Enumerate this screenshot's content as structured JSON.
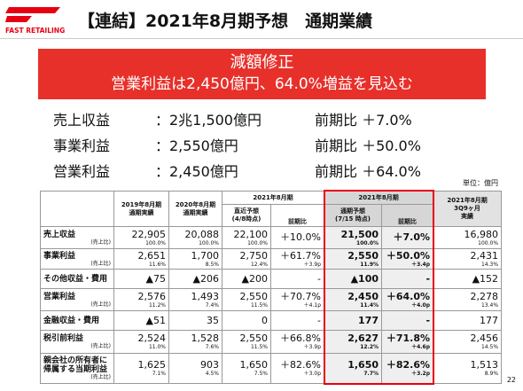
{
  "logo": {
    "text": "FAST RETAILING"
  },
  "header": {
    "title": "【連結】2021年8月期予想　通期業績"
  },
  "banner": {
    "line1": "減額修正",
    "line2": "営業利益は2,450億円、64.0%増益を見込む"
  },
  "summary": [
    {
      "label": "売上収益",
      "value": "：2兆1,500億円",
      "compare": "前期比 ＋7.0%"
    },
    {
      "label": "事業利益",
      "value": "：2,550億円",
      "compare": "前期比 ＋50.0%"
    },
    {
      "label": "営業利益",
      "value": "：2,450億円",
      "compare": "前期比 ＋64.0%"
    }
  ],
  "table": {
    "unit": "単位：億円",
    "headers": {
      "c1": [
        "2019年8月期",
        "通期実績"
      ],
      "c2": [
        "2020年8月期",
        "通期実績"
      ],
      "g1": "2021年8月期",
      "g1a": [
        "直近予想",
        "(4/8時点)"
      ],
      "g1b": "前期比",
      "g2": "2021年8月期",
      "g2a": [
        "通期予想",
        "(7/15 時点)"
      ],
      "g2b": "前期比",
      "c7": [
        "2021年8月期",
        "3Q9ヶ月",
        "実績"
      ]
    },
    "rows": [
      {
        "label": [
          "売上収益"
        ],
        "sub": "(売上比)",
        "cells": [
          [
            "22,905",
            "100.0%"
          ],
          [
            "20,088",
            "100.0%"
          ],
          [
            "22,100",
            "100.0%"
          ],
          [
            "＋10.0%"
          ],
          [
            "21,500",
            "100.0%"
          ],
          [
            "＋7.0%"
          ],
          [
            "16,980",
            "100.0%"
          ]
        ]
      },
      {
        "label": [
          "事業利益"
        ],
        "sub": "(売上比)",
        "cells": [
          [
            "2,651",
            "11.6%"
          ],
          [
            "1,700",
            "8.5%"
          ],
          [
            "2,750",
            "12.4%"
          ],
          [
            "＋61.7%",
            "＋3.9p"
          ],
          [
            "2,550",
            "11.9%"
          ],
          [
            "＋50.0%",
            "＋3.4p"
          ],
          [
            "2,431",
            "14.3%"
          ]
        ]
      },
      {
        "label": [
          "その他収益・費用"
        ],
        "cells": [
          [
            "▲75"
          ],
          [
            "▲206"
          ],
          [
            "▲200"
          ],
          [
            "-"
          ],
          [
            "▲100"
          ],
          [
            "-"
          ],
          [
            "▲152"
          ]
        ]
      },
      {
        "label": [
          "営業利益"
        ],
        "sub": "(売上比)",
        "cells": [
          [
            "2,576",
            "11.2%"
          ],
          [
            "1,493",
            "7.4%"
          ],
          [
            "2,550",
            "11.5%"
          ],
          [
            "＋70.7%",
            "＋4.1p"
          ],
          [
            "2,450",
            "11.4%"
          ],
          [
            "＋64.0%",
            "＋4.0p"
          ],
          [
            "2,278",
            "13.4%"
          ]
        ]
      },
      {
        "label": [
          "金融収益・費用"
        ],
        "cells": [
          [
            "▲51"
          ],
          [
            "35"
          ],
          [
            "0"
          ],
          [
            "-"
          ],
          [
            "177"
          ],
          [
            "-"
          ],
          [
            "177"
          ]
        ]
      },
      {
        "label": [
          "税引前利益"
        ],
        "sub": "(売上比)",
        "cells": [
          [
            "2,524",
            "11.0%"
          ],
          [
            "1,528",
            "7.6%"
          ],
          [
            "2,550",
            "11.5%"
          ],
          [
            "＋66.8%",
            "＋3.9p"
          ],
          [
            "2,627",
            "12.2%"
          ],
          [
            "＋71.8%",
            "＋4.6p"
          ],
          [
            "2,456",
            "14.5%"
          ]
        ]
      },
      {
        "label": [
          "親会社の所有者に",
          "帰属する当期利益"
        ],
        "sub": "(売上比)",
        "cells": [
          [
            "1,625",
            "7.1%"
          ],
          [
            "903",
            "4.5%"
          ],
          [
            "1,650",
            "7.5%"
          ],
          [
            "＋82.6%",
            "＋3.0p"
          ],
          [
            "1,650",
            "7.7%"
          ],
          [
            "＋82.6%",
            "＋3.2p"
          ],
          [
            "1,513",
            "8.9%"
          ]
        ]
      }
    ]
  },
  "page_number": "22"
}
